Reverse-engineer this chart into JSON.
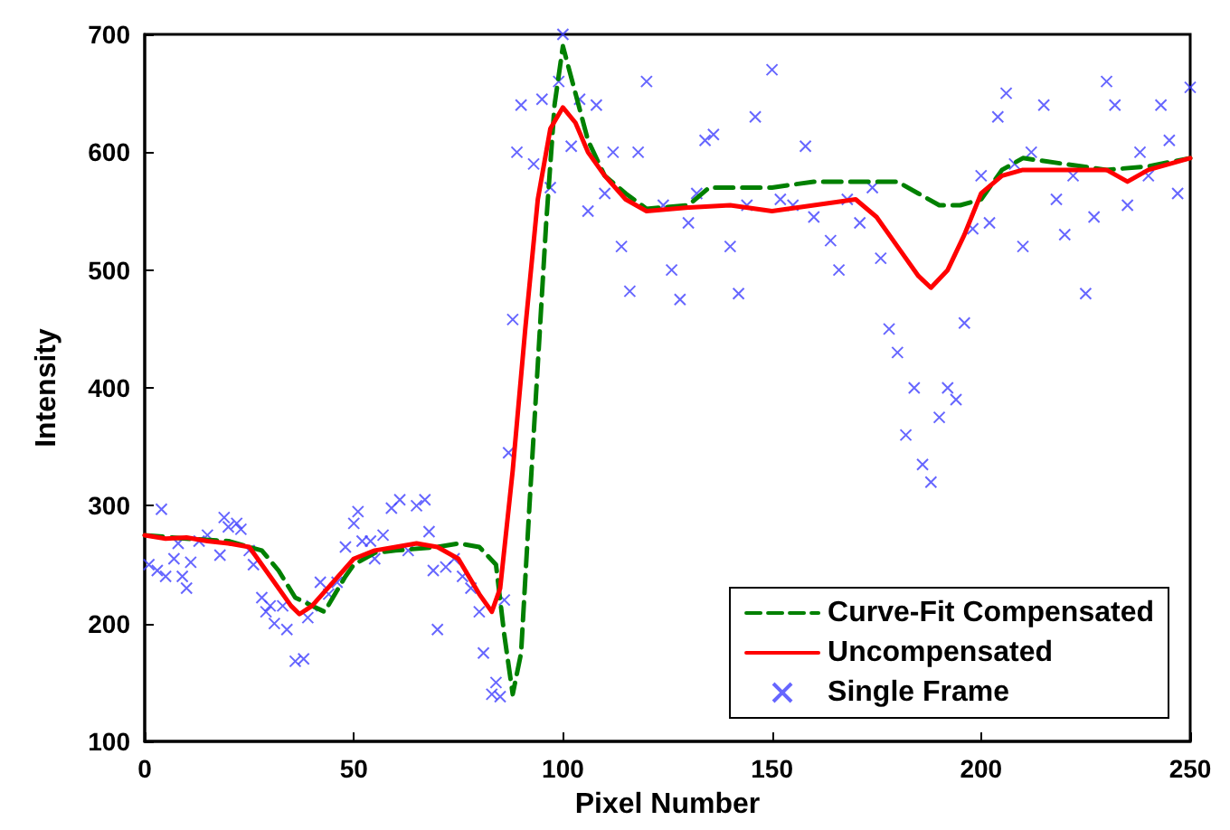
{
  "chart_data": {
    "type": "line",
    "xlabel": "Pixel Number",
    "ylabel": "Intensity",
    "xlim": [
      0,
      250
    ],
    "xticks": [
      0,
      50,
      100,
      150,
      200,
      250
    ],
    "ylim": [
      100,
      700
    ],
    "yticks": [
      100,
      200,
      300,
      400,
      500,
      600,
      700
    ],
    "grid": false,
    "legend": "bottom right",
    "series": [
      {
        "name": "Curve-Fit Compensated",
        "color": "#008000",
        "line_style": "dashed",
        "marker": "none",
        "x": [
          0,
          10,
          20,
          28,
          32,
          36,
          40,
          43,
          48,
          50,
          55,
          60,
          70,
          75,
          80,
          84,
          86,
          88,
          90,
          92,
          94,
          96,
          98,
          100,
          103,
          106,
          110,
          115,
          120,
          130,
          135,
          140,
          150,
          160,
          170,
          175,
          180,
          185,
          190,
          195,
          200,
          205,
          210,
          220,
          230,
          240,
          250
        ],
        "values": [
          275,
          272,
          270,
          262,
          245,
          222,
          215,
          210,
          240,
          250,
          260,
          262,
          265,
          268,
          265,
          250,
          190,
          140,
          175,
          300,
          420,
          540,
          640,
          690,
          650,
          610,
          580,
          565,
          552,
          555,
          570,
          570,
          570,
          575,
          575,
          575,
          575,
          565,
          555,
          555,
          560,
          585,
          595,
          590,
          585,
          588,
          595
        ]
      },
      {
        "name": "Uncompensated",
        "color": "#ff0000",
        "line_style": "solid",
        "marker": "none",
        "x": [
          0,
          5,
          10,
          15,
          20,
          25,
          30,
          35,
          37,
          40,
          45,
          50,
          55,
          60,
          65,
          70,
          75,
          80,
          83,
          85,
          88,
          91,
          94,
          97,
          100,
          103,
          106,
          110,
          115,
          120,
          130,
          140,
          150,
          160,
          170,
          175,
          180,
          185,
          188,
          192,
          196,
          200,
          205,
          210,
          220,
          230,
          235,
          240,
          250
        ],
        "values": [
          275,
          272,
          273,
          270,
          268,
          265,
          240,
          215,
          208,
          215,
          235,
          255,
          262,
          265,
          268,
          265,
          255,
          225,
          210,
          230,
          330,
          450,
          560,
          620,
          638,
          625,
          600,
          580,
          560,
          550,
          553,
          555,
          550,
          555,
          560,
          545,
          520,
          495,
          485,
          500,
          530,
          565,
          580,
          585,
          585,
          585,
          575,
          585,
          595
        ]
      },
      {
        "name": "Single Frame",
        "type": "scatter",
        "color": "#4040ff",
        "marker": "cross",
        "x": [
          1,
          3,
          4,
          5,
          7,
          8,
          9,
          10,
          11,
          13,
          15,
          18,
          19,
          20,
          22,
          23,
          25,
          26,
          28,
          29,
          30,
          31,
          33,
          34,
          36,
          38,
          39,
          40,
          42,
          44,
          46,
          48,
          50,
          51,
          52,
          54,
          55,
          57,
          59,
          61,
          63,
          65,
          67,
          68,
          69,
          70,
          72,
          74,
          76,
          78,
          80,
          81,
          83,
          84,
          85,
          86,
          87,
          88,
          89,
          90,
          93,
          95,
          97,
          99,
          100,
          102,
          104,
          106,
          108,
          110,
          112,
          114,
          116,
          118,
          120,
          124,
          126,
          128,
          130,
          132,
          134,
          136,
          140,
          142,
          144,
          146,
          150,
          152,
          155,
          158,
          160,
          164,
          166,
          168,
          171,
          174,
          176,
          178,
          180,
          182,
          184,
          186,
          188,
          190,
          192,
          194,
          196,
          198,
          200,
          202,
          204,
          206,
          208,
          210,
          212,
          215,
          218,
          220,
          222,
          225,
          227,
          230,
          232,
          235,
          238,
          240,
          243,
          245,
          247,
          250
        ],
        "values": [
          250,
          245,
          297,
          240,
          255,
          268,
          240,
          230,
          252,
          270,
          275,
          258,
          290,
          282,
          285,
          280,
          262,
          250,
          222,
          210,
          215,
          200,
          215,
          195,
          168,
          170,
          205,
          215,
          235,
          225,
          235,
          265,
          285,
          295,
          270,
          270,
          255,
          275,
          298,
          305,
          262,
          300,
          305,
          278,
          245,
          195,
          248,
          255,
          240,
          230,
          210,
          175,
          140,
          150,
          138,
          220,
          345,
          458,
          600,
          640,
          590,
          645,
          570,
          660,
          700,
          605,
          645,
          550,
          640,
          565,
          600,
          520,
          482,
          600,
          660,
          555,
          500,
          475,
          540,
          565,
          610,
          615,
          520,
          480,
          555,
          630,
          670,
          560,
          555,
          605,
          545,
          525,
          500,
          560,
          540,
          570,
          510,
          450,
          430,
          360,
          400,
          335,
          320,
          375,
          400,
          390,
          455,
          535,
          580,
          540,
          630,
          650,
          590,
          520,
          600,
          640,
          560,
          530,
          580,
          480,
          545,
          660,
          640,
          555,
          600,
          580,
          640,
          610,
          565,
          655
        ]
      }
    ]
  }
}
